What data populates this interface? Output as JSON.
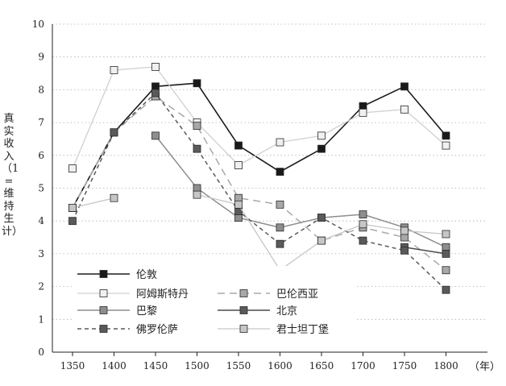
{
  "chart_data": {
    "type": "line",
    "ylabel": "真实收入（1=维持生计）",
    "xunit": "（年）",
    "x": [
      1350,
      1400,
      1450,
      1500,
      1550,
      1600,
      1650,
      1700,
      1750,
      1800
    ],
    "yticks": [
      0,
      1,
      2,
      3,
      4,
      5,
      6,
      7,
      8,
      9,
      10
    ],
    "ylim": [
      0,
      10
    ],
    "grid": "horizontal-dotted",
    "legend_position": "bottom-left",
    "series": [
      {
        "name": "伦敦",
        "color": "#1a1a1a",
        "marker": "#1a1a1a",
        "dash": "",
        "width": 1.6,
        "values": [
          4.4,
          6.7,
          8.1,
          8.2,
          6.3,
          5.5,
          6.2,
          7.5,
          8.1,
          6.6
        ]
      },
      {
        "name": "阿姆斯特丹",
        "color": "#d0d0d0",
        "marker": "#f0f0f0",
        "dash": "",
        "width": 1.3,
        "values": [
          5.6,
          8.6,
          8.7,
          7.0,
          5.7,
          6.4,
          6.6,
          7.3,
          7.4,
          6.3
        ]
      },
      {
        "name": "巴伦西亚",
        "color": "#a8a8a8",
        "marker": "#a8a8a8",
        "dash": "9,6",
        "width": 1.5,
        "values": [
          4.4,
          6.7,
          7.8,
          6.9,
          4.7,
          4.5,
          3.4,
          3.8,
          3.5,
          2.5
        ]
      },
      {
        "name": "巴黎",
        "color": "#8e8e8e",
        "marker": "#8e8e8e",
        "dash": "",
        "width": 1.5,
        "values": [
          null,
          null,
          6.6,
          5.0,
          4.1,
          3.8,
          4.1,
          4.2,
          3.8,
          3.2
        ]
      },
      {
        "name": "北京",
        "color": "#4a4a4a",
        "marker": "#5a5a5a",
        "dash": "",
        "width": 1.5,
        "values": [
          null,
          null,
          null,
          null,
          null,
          null,
          null,
          null,
          3.2,
          3.0
        ]
      },
      {
        "name": "佛罗伦萨",
        "color": "#5a5a5a",
        "marker": "#5a5a5a",
        "dash": "5,4",
        "width": 1.5,
        "values": [
          4.0,
          6.7,
          7.9,
          6.2,
          4.3,
          3.3,
          4.1,
          3.4,
          3.1,
          1.9
        ]
      },
      {
        "name": "君士坦丁堡",
        "color": "#c6c6c6",
        "marker": "#c6c6c6",
        "dash": "",
        "width": 1.3,
        "values": [
          4.4,
          4.7,
          null,
          4.8,
          4.5,
          2.5,
          3.4,
          3.9,
          3.7,
          3.6
        ]
      }
    ],
    "legend_order": [
      [
        "伦敦"
      ],
      [
        "阿姆斯特丹",
        "巴伦西亚"
      ],
      [
        "巴黎",
        "北京"
      ],
      [
        "佛罗伦萨",
        "君士坦丁堡"
      ]
    ]
  }
}
